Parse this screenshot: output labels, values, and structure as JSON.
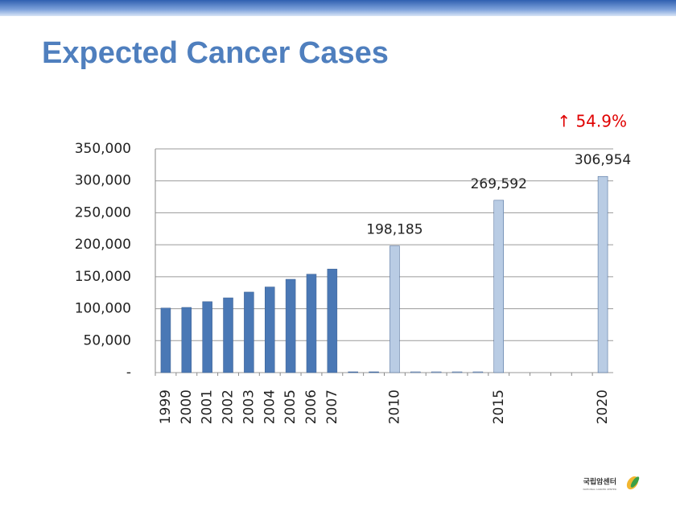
{
  "chart_data": {
    "type": "bar",
    "title": "Expected Cancer Cases",
    "annotation": "↑ 54.9%",
    "categories": [
      "1999",
      "2000",
      "2001",
      "2002",
      "2003",
      "2004",
      "2005",
      "2006",
      "2007",
      null,
      null,
      "2010",
      null,
      null,
      null,
      null,
      "2015",
      null,
      null,
      null,
      null,
      "2020"
    ],
    "values": [
      101000,
      102000,
      111000,
      117000,
      126000,
      134000,
      146000,
      154000,
      162000,
      0,
      0,
      198185,
      0,
      0,
      0,
      0,
      269592,
      null,
      null,
      null,
      null,
      306954
    ],
    "value_labels": [
      null,
      null,
      null,
      null,
      null,
      null,
      null,
      null,
      null,
      null,
      null,
      "198,185",
      null,
      null,
      null,
      null,
      "269,592",
      null,
      null,
      null,
      null,
      "306,954"
    ],
    "colors": [
      "#4a78b5",
      "#4a78b5",
      "#4a78b5",
      "#4a78b5",
      "#4a78b5",
      "#4a78b5",
      "#4a78b5",
      "#4a78b5",
      "#4a78b5",
      "#4a78b5",
      "#4a78b5",
      "#b9cce4",
      "#b9cce4",
      "#b9cce4",
      "#b9cce4",
      "#b9cce4",
      "#b9cce4",
      null,
      null,
      null,
      null,
      "#b9cce4"
    ],
    "ylim": [
      0,
      350000
    ],
    "yticks": [
      {
        "value": 0,
        "label": "-"
      },
      {
        "value": 50000,
        "label": "50,000"
      },
      {
        "value": 100000,
        "label": "100,000"
      },
      {
        "value": 150000,
        "label": "150,000"
      },
      {
        "value": 200000,
        "label": "200,000"
      },
      {
        "value": 250000,
        "label": "250,000"
      },
      {
        "value": 300000,
        "label": "300,000"
      },
      {
        "value": 350000,
        "label": "350,000"
      }
    ],
    "grid": true
  },
  "logo": {
    "name": "국립암센터",
    "subtitle": "NATIONAL CANCER CENTER"
  }
}
